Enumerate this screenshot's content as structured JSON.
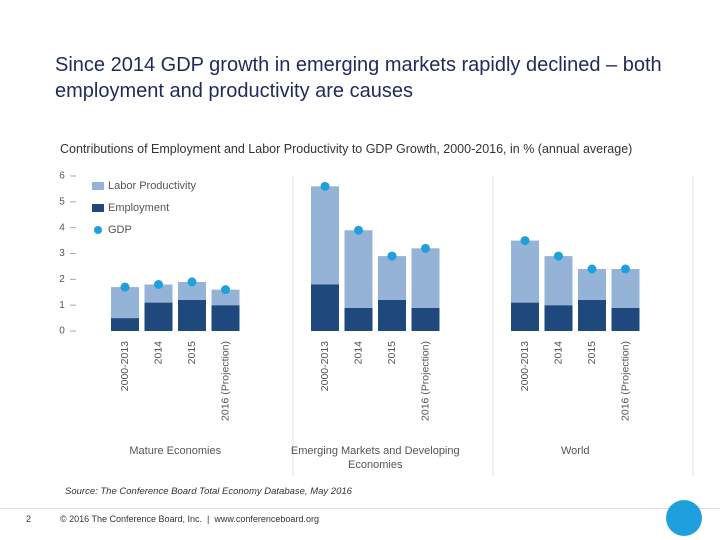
{
  "slide_title": "Since 2014 GDP growth in emerging markets rapidly declined – both employment and productivity are causes",
  "source": "Source: The Conference Board Total Economy Database, May 2016",
  "page_number": "2",
  "footer": "© 2016 The Conference Board, Inc.  |  www.conferenceboard.org",
  "chart_data": {
    "type": "stacked-bar",
    "title": "Contributions of Employment and Labor Productivity to GDP Growth, 2000-2016, in % (annual average)",
    "groups": [
      "Mature Economies",
      "Emerging Markets and Developing Economies",
      "World"
    ],
    "categories": [
      "2000-2013",
      "2014",
      "2015",
      "2016 (Projection)",
      "2000-2013",
      "2014",
      "2015",
      "2016 (Projection)",
      "2000-2013",
      "2014",
      "2015",
      "2016 (Projection)"
    ],
    "series": [
      {
        "name": "Labor Productivity",
        "color": "#95b3d7",
        "values": [
          1.2,
          0.7,
          0.7,
          0.6,
          3.8,
          3.0,
          1.7,
          2.3,
          2.4,
          1.9,
          1.2,
          1.5
        ]
      },
      {
        "name": "Employment",
        "color": "#1f497d",
        "values": [
          0.5,
          1.1,
          1.2,
          1.0,
          1.8,
          0.9,
          1.2,
          0.9,
          1.1,
          1.0,
          1.2,
          0.9
        ]
      },
      {
        "name": "GDP",
        "color": "#1fa0dc",
        "kind": "dot",
        "values": [
          1.7,
          1.8,
          1.9,
          1.6,
          5.6,
          3.9,
          2.9,
          3.2,
          3.5,
          2.9,
          2.4,
          2.4
        ]
      }
    ],
    "ylim": [
      0,
      6
    ],
    "yticks": [
      0,
      1,
      2,
      3,
      4,
      5,
      6
    ],
    "legend": "top-left"
  }
}
